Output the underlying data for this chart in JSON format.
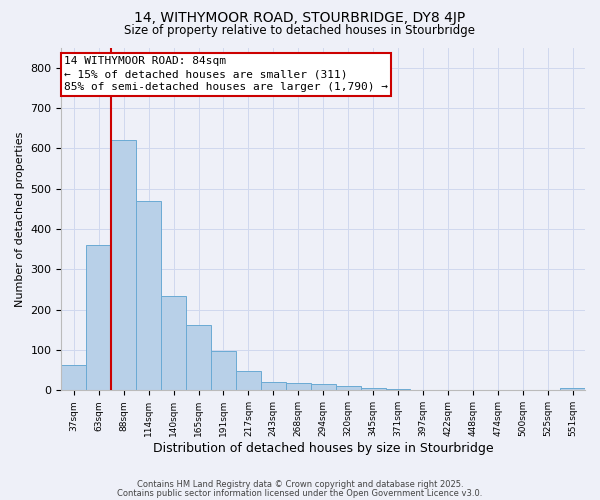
{
  "title1": "14, WITHYMOOR ROAD, STOURBRIDGE, DY8 4JP",
  "title2": "Size of property relative to detached houses in Stourbridge",
  "xlabel": "Distribution of detached houses by size in Stourbridge",
  "ylabel": "Number of detached properties",
  "categories": [
    "37sqm",
    "63sqm",
    "88sqm",
    "114sqm",
    "140sqm",
    "165sqm",
    "191sqm",
    "217sqm",
    "243sqm",
    "268sqm",
    "294sqm",
    "320sqm",
    "345sqm",
    "371sqm",
    "397sqm",
    "422sqm",
    "448sqm",
    "474sqm",
    "500sqm",
    "525sqm",
    "551sqm"
  ],
  "values": [
    63,
    360,
    620,
    470,
    235,
    163,
    97,
    47,
    20,
    18,
    15,
    10,
    5,
    3,
    2,
    2,
    2,
    2,
    2,
    2,
    5
  ],
  "bar_color": "#b8d0e8",
  "bar_edge_color": "#6aaad4",
  "red_line_index": 2,
  "red_line_color": "#cc0000",
  "annotation_text": "14 WITHYMOOR ROAD: 84sqm\n← 15% of detached houses are smaller (311)\n85% of semi-detached houses are larger (1,790) →",
  "annotation_box_color": "#ffffff",
  "annotation_box_edge": "#cc0000",
  "ylim": [
    0,
    850
  ],
  "yticks": [
    0,
    100,
    200,
    300,
    400,
    500,
    600,
    700,
    800
  ],
  "grid_color": "#d0d8ee",
  "background_color": "#eef0f8",
  "footer1": "Contains HM Land Registry data © Crown copyright and database right 2025.",
  "footer2": "Contains public sector information licensed under the Open Government Licence v3.0."
}
